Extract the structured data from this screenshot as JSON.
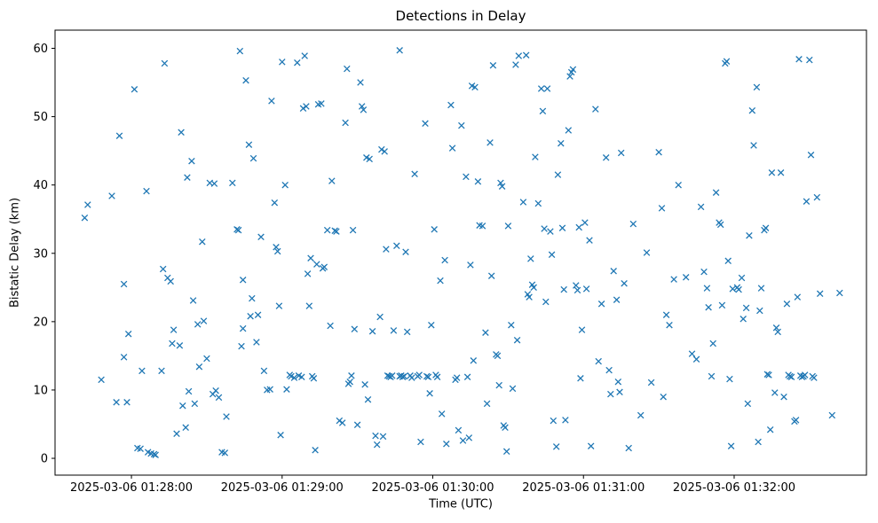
{
  "chart_data": {
    "type": "scatter",
    "title": "Detections in Delay",
    "xlabel": "Time (UTC)",
    "ylabel": "Bistatic Delay (km)",
    "marker": "x",
    "marker_color": "#1f77b4",
    "x_unit": "minutes after 2025-03-06 01:28:00 UTC",
    "x_tick_positions": [
      0,
      1,
      2,
      3,
      4
    ],
    "x_tick_labels": [
      "2025-03-06 01:28:00",
      "2025-03-06 01:29:00",
      "2025-03-06 01:30:00",
      "2025-03-06 01:31:00",
      "2025-03-06 01:32:00"
    ],
    "y_ticks": [
      0,
      10,
      20,
      30,
      40,
      50,
      60
    ],
    "xlim": [
      -0.507,
      4.878
    ],
    "ylim": [
      -2.46,
      62.66
    ],
    "grid": false,
    "legend": null,
    "points": [
      [
        -0.31,
        35.2
      ],
      [
        -0.29,
        37.1
      ],
      [
        -0.2,
        11.5
      ],
      [
        -0.13,
        38.4
      ],
      [
        -0.1,
        8.2
      ],
      [
        -0.08,
        47.2
      ],
      [
        -0.05,
        25.5
      ],
      [
        -0.05,
        14.8
      ],
      [
        -0.03,
        8.2
      ],
      [
        -0.02,
        18.2
      ],
      [
        0.02,
        54.0
      ],
      [
        0.04,
        1.5
      ],
      [
        0.06,
        1.4
      ],
      [
        0.07,
        12.8
      ],
      [
        0.1,
        39.1
      ],
      [
        0.11,
        0.9
      ],
      [
        0.13,
        0.7
      ],
      [
        0.15,
        0.6
      ],
      [
        0.16,
        0.5
      ],
      [
        0.2,
        12.8
      ],
      [
        0.21,
        27.7
      ],
      [
        0.22,
        57.8
      ],
      [
        0.24,
        26.4
      ],
      [
        0.26,
        25.9
      ],
      [
        0.27,
        16.8
      ],
      [
        0.28,
        18.8
      ],
      [
        0.3,
        3.6
      ],
      [
        0.32,
        16.5
      ],
      [
        0.33,
        47.7
      ],
      [
        0.34,
        7.7
      ],
      [
        0.36,
        4.5
      ],
      [
        0.37,
        41.1
      ],
      [
        0.38,
        9.8
      ],
      [
        0.4,
        43.5
      ],
      [
        0.41,
        23.1
      ],
      [
        0.42,
        8.0
      ],
      [
        0.44,
        19.6
      ],
      [
        0.45,
        13.4
      ],
      [
        0.47,
        31.7
      ],
      [
        0.48,
        20.1
      ],
      [
        0.5,
        14.6
      ],
      [
        0.52,
        40.3
      ],
      [
        0.54,
        9.4
      ],
      [
        0.55,
        40.2
      ],
      [
        0.56,
        9.9
      ],
      [
        0.58,
        8.9
      ],
      [
        0.6,
        0.9
      ],
      [
        0.62,
        0.8
      ],
      [
        0.63,
        6.1
      ],
      [
        0.67,
        40.3
      ],
      [
        0.7,
        33.5
      ],
      [
        0.71,
        33.4
      ],
      [
        0.72,
        59.6
      ],
      [
        0.73,
        16.4
      ],
      [
        0.74,
        19.0
      ],
      [
        0.74,
        26.1
      ],
      [
        0.76,
        55.3
      ],
      [
        0.78,
        45.9
      ],
      [
        0.79,
        20.8
      ],
      [
        0.8,
        23.4
      ],
      [
        0.81,
        43.9
      ],
      [
        0.83,
        17.0
      ],
      [
        0.84,
        21.0
      ],
      [
        0.86,
        32.4
      ],
      [
        0.88,
        12.8
      ],
      [
        0.9,
        10.0
      ],
      [
        0.92,
        10.1
      ],
      [
        0.93,
        52.3
      ],
      [
        0.95,
        37.4
      ],
      [
        0.96,
        30.9
      ],
      [
        0.97,
        30.3
      ],
      [
        0.98,
        22.3
      ],
      [
        0.99,
        3.4
      ],
      [
        1.0,
        58.0
      ],
      [
        1.02,
        40.0
      ],
      [
        1.03,
        10.1
      ],
      [
        1.05,
        12.2
      ],
      [
        1.06,
        12.0
      ],
      [
        1.08,
        11.8
      ],
      [
        1.1,
        57.9
      ],
      [
        1.11,
        12.1
      ],
      [
        1.13,
        11.9
      ],
      [
        1.14,
        51.2
      ],
      [
        1.15,
        58.9
      ],
      [
        1.16,
        51.5
      ],
      [
        1.17,
        27.0
      ],
      [
        1.18,
        22.3
      ],
      [
        1.19,
        29.3
      ],
      [
        1.2,
        12.0
      ],
      [
        1.21,
        11.7
      ],
      [
        1.22,
        1.2
      ],
      [
        1.23,
        28.4
      ],
      [
        1.24,
        51.8
      ],
      [
        1.26,
        51.9
      ],
      [
        1.27,
        27.8
      ],
      [
        1.28,
        28.0
      ],
      [
        1.3,
        33.4
      ],
      [
        1.32,
        19.4
      ],
      [
        1.33,
        40.6
      ],
      [
        1.35,
        33.3
      ],
      [
        1.36,
        33.2
      ],
      [
        1.38,
        5.5
      ],
      [
        1.4,
        5.2
      ],
      [
        1.42,
        49.1
      ],
      [
        1.43,
        57.0
      ],
      [
        1.44,
        10.9
      ],
      [
        1.45,
        11.2
      ],
      [
        1.46,
        12.1
      ],
      [
        1.47,
        33.4
      ],
      [
        1.48,
        18.9
      ],
      [
        1.5,
        4.9
      ],
      [
        1.52,
        55.0
      ],
      [
        1.53,
        51.5
      ],
      [
        1.54,
        51.0
      ],
      [
        1.55,
        10.8
      ],
      [
        1.56,
        44.0
      ],
      [
        1.57,
        8.6
      ],
      [
        1.58,
        43.8
      ],
      [
        1.6,
        18.6
      ],
      [
        1.62,
        3.3
      ],
      [
        1.63,
        2.0
      ],
      [
        1.65,
        20.7
      ],
      [
        1.66,
        45.2
      ],
      [
        1.67,
        3.2
      ],
      [
        1.68,
        44.9
      ],
      [
        1.69,
        30.6
      ],
      [
        1.7,
        12.1
      ],
      [
        1.71,
        12.0
      ],
      [
        1.72,
        11.9
      ],
      [
        1.73,
        12.1
      ],
      [
        1.74,
        18.7
      ],
      [
        1.76,
        31.1
      ],
      [
        1.78,
        59.7
      ],
      [
        1.78,
        12.0
      ],
      [
        1.79,
        12.1
      ],
      [
        1.8,
        11.9
      ],
      [
        1.81,
        12.0
      ],
      [
        1.82,
        30.2
      ],
      [
        1.83,
        18.5
      ],
      [
        1.85,
        12.1
      ],
      [
        1.86,
        11.8
      ],
      [
        1.88,
        41.6
      ],
      [
        1.9,
        12.0
      ],
      [
        1.91,
        12.2
      ],
      [
        1.92,
        2.4
      ],
      [
        1.95,
        49.0
      ],
      [
        1.96,
        12.0
      ],
      [
        1.97,
        11.9
      ],
      [
        1.98,
        9.5
      ],
      [
        1.99,
        19.5
      ],
      [
        2.01,
        33.5
      ],
      [
        2.02,
        12.2
      ],
      [
        2.03,
        11.9
      ],
      [
        2.05,
        26.0
      ],
      [
        2.06,
        6.5
      ],
      [
        2.08,
        29.0
      ],
      [
        2.09,
        2.1
      ],
      [
        2.12,
        51.7
      ],
      [
        2.13,
        45.4
      ],
      [
        2.15,
        11.5
      ],
      [
        2.16,
        11.8
      ],
      [
        2.17,
        4.1
      ],
      [
        2.19,
        48.7
      ],
      [
        2.2,
        2.6
      ],
      [
        2.22,
        41.2
      ],
      [
        2.23,
        11.9
      ],
      [
        2.24,
        3.0
      ],
      [
        2.25,
        28.3
      ],
      [
        2.26,
        54.5
      ],
      [
        2.27,
        14.3
      ],
      [
        2.28,
        54.3
      ],
      [
        2.3,
        40.5
      ],
      [
        2.31,
        34.1
      ],
      [
        2.33,
        34.0
      ],
      [
        2.35,
        18.4
      ],
      [
        2.36,
        8.0
      ],
      [
        2.38,
        46.2
      ],
      [
        2.39,
        26.7
      ],
      [
        2.4,
        57.5
      ],
      [
        2.42,
        15.2
      ],
      [
        2.43,
        15.0
      ],
      [
        2.44,
        10.7
      ],
      [
        2.45,
        40.3
      ],
      [
        2.46,
        39.8
      ],
      [
        2.47,
        4.8
      ],
      [
        2.48,
        4.5
      ],
      [
        2.49,
        1.0
      ],
      [
        2.5,
        34.0
      ],
      [
        2.52,
        19.5
      ],
      [
        2.53,
        10.2
      ],
      [
        2.55,
        57.6
      ],
      [
        2.56,
        17.3
      ],
      [
        2.57,
        58.9
      ],
      [
        2.6,
        37.5
      ],
      [
        2.62,
        59.0
      ],
      [
        2.63,
        24.0
      ],
      [
        2.64,
        23.6
      ],
      [
        2.65,
        29.2
      ],
      [
        2.66,
        25.4
      ],
      [
        2.67,
        25.0
      ],
      [
        2.68,
        44.1
      ],
      [
        2.7,
        37.3
      ],
      [
        2.72,
        54.1
      ],
      [
        2.73,
        50.8
      ],
      [
        2.74,
        33.6
      ],
      [
        2.75,
        22.9
      ],
      [
        2.76,
        54.1
      ],
      [
        2.78,
        33.2
      ],
      [
        2.79,
        29.8
      ],
      [
        2.8,
        5.5
      ],
      [
        2.82,
        1.7
      ],
      [
        2.83,
        41.5
      ],
      [
        2.85,
        46.1
      ],
      [
        2.86,
        33.7
      ],
      [
        2.87,
        24.7
      ],
      [
        2.88,
        5.6
      ],
      [
        2.9,
        48.0
      ],
      [
        2.91,
        55.9
      ],
      [
        2.92,
        56.5
      ],
      [
        2.93,
        56.9
      ],
      [
        2.95,
        25.3
      ],
      [
        2.96,
        24.6
      ],
      [
        2.97,
        33.8
      ],
      [
        2.98,
        11.7
      ],
      [
        2.99,
        18.8
      ],
      [
        3.01,
        34.5
      ],
      [
        3.02,
        24.8
      ],
      [
        3.04,
        31.9
      ],
      [
        3.05,
        1.8
      ],
      [
        3.08,
        51.1
      ],
      [
        3.1,
        14.2
      ],
      [
        3.12,
        22.6
      ],
      [
        3.15,
        44.0
      ],
      [
        3.17,
        12.9
      ],
      [
        3.18,
        9.4
      ],
      [
        3.2,
        27.4
      ],
      [
        3.22,
        23.2
      ],
      [
        3.23,
        11.2
      ],
      [
        3.24,
        9.7
      ],
      [
        3.25,
        44.7
      ],
      [
        3.27,
        25.6
      ],
      [
        3.3,
        1.5
      ],
      [
        3.33,
        34.3
      ],
      [
        3.38,
        6.3
      ],
      [
        3.42,
        30.1
      ],
      [
        3.45,
        11.1
      ],
      [
        3.5,
        44.8
      ],
      [
        3.52,
        36.6
      ],
      [
        3.53,
        9.0
      ],
      [
        3.55,
        21.0
      ],
      [
        3.57,
        19.5
      ],
      [
        3.6,
        26.2
      ],
      [
        3.63,
        40.0
      ],
      [
        3.68,
        26.5
      ],
      [
        3.72,
        15.3
      ],
      [
        3.75,
        14.5
      ],
      [
        3.78,
        36.8
      ],
      [
        3.8,
        27.3
      ],
      [
        3.82,
        24.9
      ],
      [
        3.83,
        22.1
      ],
      [
        3.85,
        12.0
      ],
      [
        3.86,
        16.8
      ],
      [
        3.88,
        38.9
      ],
      [
        3.9,
        34.5
      ],
      [
        3.91,
        34.2
      ],
      [
        3.92,
        22.4
      ],
      [
        3.94,
        57.8
      ],
      [
        3.95,
        58.1
      ],
      [
        3.96,
        28.9
      ],
      [
        3.97,
        11.6
      ],
      [
        3.98,
        1.8
      ],
      [
        3.99,
        24.8
      ],
      [
        4.02,
        25.0
      ],
      [
        4.03,
        24.7
      ],
      [
        4.05,
        26.4
      ],
      [
        4.06,
        20.4
      ],
      [
        4.08,
        22.0
      ],
      [
        4.09,
        8.0
      ],
      [
        4.1,
        32.6
      ],
      [
        4.12,
        50.9
      ],
      [
        4.13,
        45.8
      ],
      [
        4.15,
        54.3
      ],
      [
        4.16,
        2.4
      ],
      [
        4.17,
        21.6
      ],
      [
        4.18,
        24.9
      ],
      [
        4.2,
        33.4
      ],
      [
        4.21,
        33.7
      ],
      [
        4.22,
        12.3
      ],
      [
        4.23,
        12.2
      ],
      [
        4.24,
        4.2
      ],
      [
        4.25,
        41.8
      ],
      [
        4.27,
        9.6
      ],
      [
        4.28,
        19.1
      ],
      [
        4.29,
        18.5
      ],
      [
        4.31,
        41.8
      ],
      [
        4.33,
        9.0
      ],
      [
        4.35,
        22.6
      ],
      [
        4.36,
        12.2
      ],
      [
        4.37,
        12.0
      ],
      [
        4.38,
        11.9
      ],
      [
        4.4,
        5.4
      ],
      [
        4.41,
        5.6
      ],
      [
        4.42,
        23.6
      ],
      [
        4.43,
        58.4
      ],
      [
        4.44,
        12.1
      ],
      [
        4.45,
        11.9
      ],
      [
        4.46,
        12.0
      ],
      [
        4.47,
        12.2
      ],
      [
        4.48,
        37.6
      ],
      [
        4.5,
        58.3
      ],
      [
        4.51,
        44.4
      ],
      [
        4.52,
        12.0
      ],
      [
        4.53,
        11.8
      ],
      [
        4.55,
        38.2
      ],
      [
        4.57,
        24.1
      ],
      [
        4.65,
        6.3
      ],
      [
        4.7,
        24.2
      ]
    ]
  }
}
